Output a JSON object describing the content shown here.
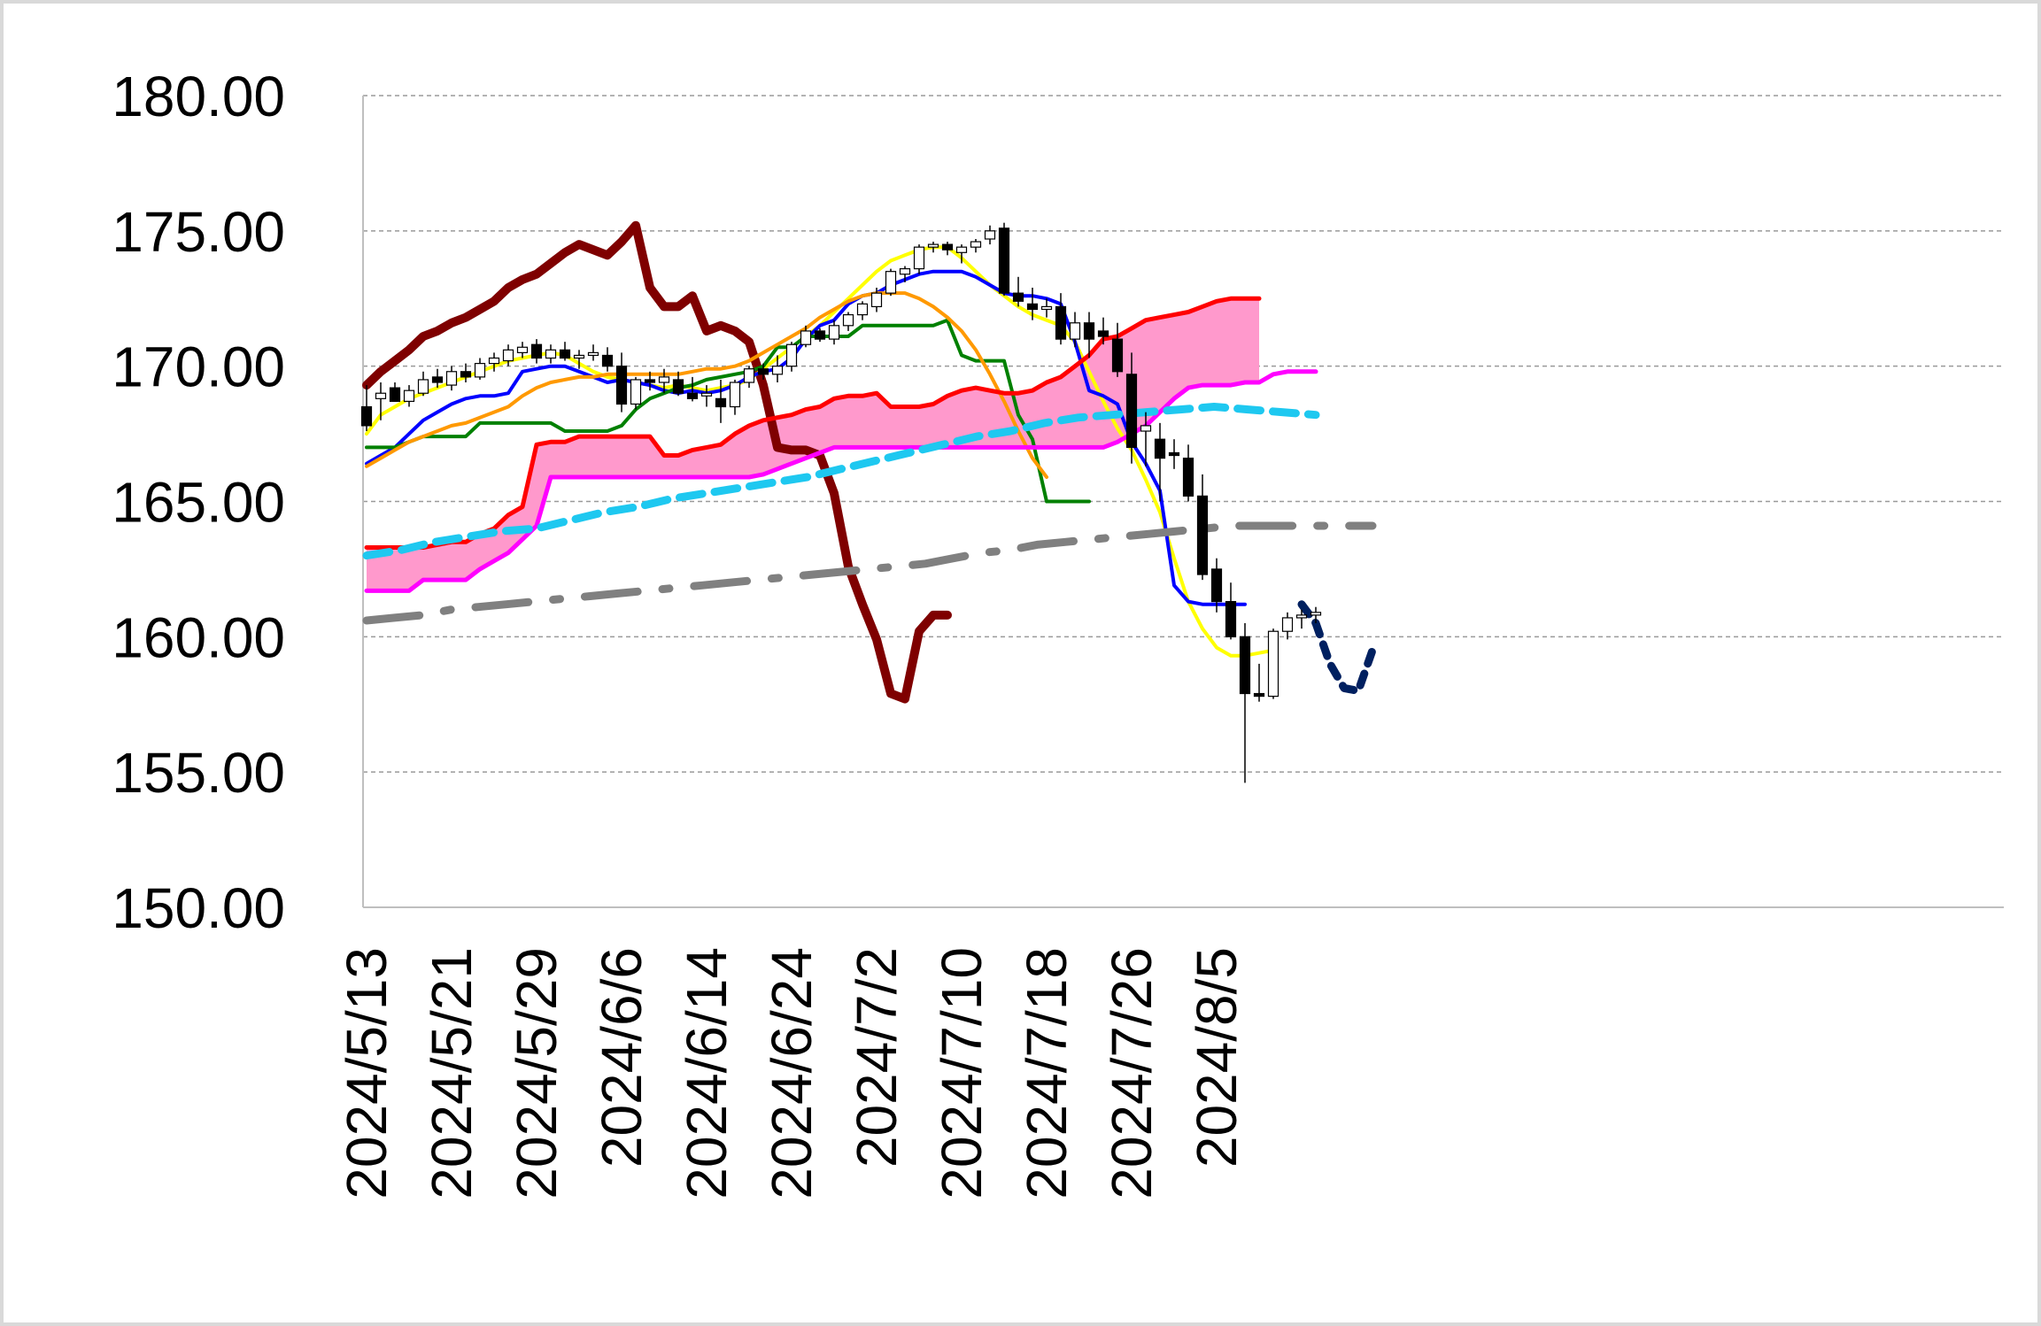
{
  "chart_data": {
    "type": "line",
    "title": "",
    "xlabel": "",
    "ylabel": "",
    "ylim": [
      150,
      180
    ],
    "y_ticks": [
      "150.00",
      "155.00",
      "160.00",
      "165.00",
      "170.00",
      "175.00",
      "180.00"
    ],
    "x_tick_labels": [
      "2024/5/13",
      "2024/5/21",
      "2024/5/29",
      "2024/6/6",
      "2024/6/14",
      "2024/6/24",
      "2024/7/2",
      "2024/7/10",
      "2024/7/18",
      "2024/7/26",
      "2024/8/5"
    ],
    "x_tick_index": [
      0,
      6,
      12,
      18,
      24,
      30,
      36,
      42,
      48,
      54,
      60
    ],
    "grid": "horizontal dashed",
    "legend": "none",
    "candles": [
      [
        168.5,
        169.3,
        167.6,
        167.8
      ],
      [
        168.8,
        169.4,
        168.0,
        169.0
      ],
      [
        169.2,
        169.4,
        168.7,
        168.7
      ],
      [
        168.7,
        169.3,
        168.5,
        169.1
      ],
      [
        169.0,
        169.8,
        168.9,
        169.5
      ],
      [
        169.6,
        169.9,
        169.2,
        169.4
      ],
      [
        169.3,
        170.0,
        169.1,
        169.8
      ],
      [
        169.8,
        170.1,
        169.4,
        169.6
      ],
      [
        169.6,
        170.3,
        169.5,
        170.1
      ],
      [
        170.1,
        170.5,
        169.8,
        170.3
      ],
      [
        170.2,
        170.8,
        170.0,
        170.6
      ],
      [
        170.5,
        170.9,
        170.3,
        170.7
      ],
      [
        170.8,
        171.0,
        170.1,
        170.3
      ],
      [
        170.3,
        170.8,
        170.1,
        170.6
      ],
      [
        170.6,
        170.9,
        170.2,
        170.3
      ],
      [
        170.3,
        170.6,
        169.9,
        170.4
      ],
      [
        170.4,
        170.8,
        170.2,
        170.5
      ],
      [
        170.4,
        170.7,
        169.8,
        170.0
      ],
      [
        170.0,
        170.5,
        168.3,
        168.6
      ],
      [
        168.6,
        169.6,
        168.4,
        169.5
      ],
      [
        169.5,
        169.8,
        169.1,
        169.4
      ],
      [
        169.4,
        169.9,
        169.0,
        169.6
      ],
      [
        169.5,
        169.8,
        168.9,
        169.0
      ],
      [
        169.0,
        169.6,
        168.7,
        168.8
      ],
      [
        168.9,
        169.3,
        168.5,
        169.0
      ],
      [
        168.8,
        169.5,
        167.9,
        168.5
      ],
      [
        168.5,
        169.5,
        168.2,
        169.4
      ],
      [
        169.4,
        170.0,
        169.2,
        169.9
      ],
      [
        169.9,
        170.1,
        169.5,
        169.7
      ],
      [
        169.7,
        170.4,
        169.4,
        170.0
      ],
      [
        170.0,
        170.9,
        169.8,
        170.8
      ],
      [
        170.8,
        171.5,
        170.7,
        171.3
      ],
      [
        171.3,
        171.4,
        170.9,
        171.0
      ],
      [
        171.0,
        171.7,
        170.8,
        171.5
      ],
      [
        171.5,
        172.0,
        171.3,
        171.9
      ],
      [
        171.9,
        172.4,
        171.7,
        172.3
      ],
      [
        172.2,
        172.9,
        172.0,
        172.7
      ],
      [
        172.7,
        173.6,
        172.6,
        173.5
      ],
      [
        173.4,
        173.7,
        173.1,
        173.6
      ],
      [
        173.6,
        174.5,
        173.4,
        174.4
      ],
      [
        174.4,
        174.6,
        174.2,
        174.5
      ],
      [
        174.5,
        174.6,
        174.1,
        174.3
      ],
      [
        174.2,
        174.5,
        173.8,
        174.4
      ],
      [
        174.4,
        174.7,
        174.2,
        174.6
      ],
      [
        174.7,
        175.2,
        174.5,
        175.0
      ],
      [
        175.1,
        175.3,
        172.6,
        172.7
      ],
      [
        172.7,
        173.3,
        172.2,
        172.4
      ],
      [
        172.3,
        172.9,
        171.7,
        172.1
      ],
      [
        172.1,
        172.5,
        171.8,
        172.2
      ],
      [
        172.2,
        172.7,
        170.8,
        171.0
      ],
      [
        171.0,
        172.0,
        170.7,
        171.6
      ],
      [
        171.6,
        172.0,
        170.3,
        171.0
      ],
      [
        171.3,
        171.8,
        170.8,
        171.1
      ],
      [
        171.0,
        171.6,
        169.6,
        169.8
      ],
      [
        169.7,
        170.5,
        166.4,
        167.0
      ],
      [
        167.6,
        168.3,
        166.3,
        167.8
      ],
      [
        167.3,
        167.9,
        165.0,
        166.6
      ],
      [
        166.8,
        167.3,
        166.2,
        166.7
      ],
      [
        166.6,
        167.1,
        165.0,
        165.2
      ],
      [
        165.2,
        166.0,
        162.1,
        162.3
      ],
      [
        162.5,
        162.9,
        160.9,
        161.3
      ],
      [
        161.3,
        162.0,
        159.9,
        160.0
      ],
      [
        160.0,
        160.5,
        154.6,
        157.9
      ],
      [
        157.9,
        159.0,
        157.6,
        157.8
      ],
      [
        157.8,
        160.3,
        157.7,
        160.2
      ],
      [
        160.2,
        160.9,
        159.9,
        160.7
      ],
      [
        160.7,
        161.0,
        160.3,
        160.8
      ],
      [
        160.8,
        161.1,
        160.5,
        160.9
      ]
    ],
    "series": [
      {
        "name": "",
        "color": "#7f0000",
        "start": 0,
        "values": [
          169.3,
          169.8,
          170.2,
          170.6,
          171.1,
          171.3,
          171.6,
          171.8,
          172.1,
          172.4,
          172.9,
          173.2,
          173.4,
          173.8,
          174.2,
          174.5,
          174.3,
          174.1,
          174.6,
          175.2,
          172.9,
          172.2,
          172.2,
          172.6,
          171.3,
          171.5,
          171.3,
          170.9,
          169.3,
          167.0,
          166.9,
          166.9,
          166.7,
          165.3,
          162.6,
          161.2,
          159.9,
          157.9,
          157.7,
          160.2,
          160.8,
          160.8
        ]
      },
      {
        "name": "",
        "color": "#ffff00",
        "start": 0,
        "values": [
          167.5,
          168.2,
          168.5,
          168.8,
          169.0,
          169.2,
          169.4,
          169.6,
          169.8,
          170.0,
          170.2,
          170.3,
          170.4,
          170.5,
          170.4,
          170.1,
          169.8,
          169.6,
          169.5,
          169.4,
          169.3,
          169.2,
          169.3,
          169.2,
          169.1,
          169.2,
          169.3,
          169.5,
          169.9,
          170.3,
          170.7,
          171.1,
          171.5,
          172.0,
          172.5,
          173.0,
          173.5,
          173.9,
          174.1,
          174.3,
          174.4,
          174.4,
          174.0,
          173.5,
          173.0,
          172.6,
          172.2,
          171.9,
          171.7,
          171.5,
          170.9,
          169.8,
          168.7,
          167.7,
          166.9,
          165.8,
          164.6,
          162.9,
          161.3,
          160.3,
          159.6,
          159.3,
          159.3,
          159.4,
          159.5
        ]
      },
      {
        "name": "",
        "color": "#0000ff",
        "start": 0,
        "values": [
          166.4,
          166.7,
          167.0,
          167.5,
          168.0,
          168.3,
          168.6,
          168.8,
          168.9,
          168.9,
          169.0,
          169.8,
          169.9,
          170.0,
          170.0,
          169.8,
          169.6,
          169.4,
          169.5,
          169.4,
          169.3,
          169.1,
          169.0,
          169.1,
          169.0,
          169.1,
          169.3,
          169.6,
          169.8,
          169.9,
          170.3,
          171.0,
          171.5,
          171.7,
          172.3,
          172.6,
          172.7,
          173.0,
          173.2,
          173.4,
          173.5,
          173.5,
          173.5,
          173.3,
          173.0,
          172.7,
          172.6,
          172.6,
          172.5,
          172.3,
          170.9,
          169.1,
          168.9,
          168.6,
          167.2,
          166.4,
          165.4,
          161.9,
          161.3,
          161.2,
          161.2,
          161.2,
          161.2
        ]
      },
      {
        "name": "",
        "color": "#008000",
        "start": 0,
        "values": [
          167.0,
          167.0,
          167.0,
          167.2,
          167.4,
          167.4,
          167.4,
          167.4,
          167.9,
          167.9,
          167.9,
          167.9,
          167.9,
          167.9,
          167.6,
          167.6,
          167.6,
          167.6,
          167.8,
          168.4,
          168.8,
          169.0,
          169.2,
          169.3,
          169.5,
          169.6,
          169.7,
          169.8,
          170.0,
          170.7,
          170.7,
          171.1,
          171.1,
          171.1,
          171.1,
          171.5,
          171.5,
          171.5,
          171.5,
          171.5,
          171.5,
          171.7,
          170.4,
          170.2,
          170.2,
          170.2,
          168.2,
          167.3,
          165.0,
          165.0,
          165.0,
          165.0
        ]
      },
      {
        "name": "",
        "color": "#ff9900",
        "start": 0,
        "values": [
          166.3,
          166.6,
          166.9,
          167.2,
          167.4,
          167.6,
          167.8,
          167.9,
          168.1,
          168.3,
          168.5,
          168.9,
          169.2,
          169.4,
          169.5,
          169.6,
          169.6,
          169.7,
          169.7,
          169.7,
          169.7,
          169.7,
          169.7,
          169.8,
          169.9,
          169.9,
          170.0,
          170.2,
          170.5,
          170.8,
          171.1,
          171.4,
          171.8,
          172.1,
          172.4,
          172.6,
          172.7,
          172.7,
          172.7,
          172.5,
          172.2,
          171.8,
          171.3,
          170.6,
          169.7,
          168.7,
          167.6,
          166.6,
          165.9
        ]
      },
      {
        "name": "",
        "color": "#ff0000",
        "start": 0,
        "values": [
          163.3,
          163.3,
          163.3,
          163.3,
          163.3,
          163.4,
          163.5,
          163.5,
          163.8,
          164.0,
          164.5,
          164.8,
          167.1,
          167.2,
          167.2,
          167.4,
          167.4,
          167.4,
          167.4,
          167.4,
          167.4,
          166.7,
          166.7,
          166.9,
          167.0,
          167.1,
          167.5,
          167.8,
          168.0,
          168.1,
          168.2,
          168.4,
          168.5,
          168.8,
          168.9,
          168.9,
          169.0,
          168.5,
          168.5,
          168.5,
          168.6,
          168.9,
          169.1,
          169.2,
          169.1,
          169.0,
          169.0,
          169.1,
          169.4,
          169.6,
          170.0,
          170.4,
          171.0,
          171.1,
          171.4,
          171.7,
          171.8,
          171.9,
          172.0,
          172.2,
          172.4,
          172.5,
          172.5,
          172.5
        ]
      },
      {
        "name": "",
        "color": "#ff00ff",
        "start": 0,
        "values": [
          161.7,
          161.7,
          161.7,
          161.7,
          162.1,
          162.1,
          162.1,
          162.1,
          162.5,
          162.8,
          163.1,
          163.6,
          164.1,
          165.9,
          165.9,
          165.9,
          165.9,
          165.9,
          165.9,
          165.9,
          165.9,
          165.9,
          165.9,
          165.9,
          165.9,
          165.9,
          165.9,
          165.9,
          166.0,
          166.2,
          166.4,
          166.6,
          166.8,
          167.0,
          167.0,
          167.0,
          167.0,
          167.0,
          167.0,
          167.0,
          167.0,
          167.0,
          167.0,
          167.0,
          167.0,
          167.0,
          167.0,
          167.0,
          167.0,
          167.0,
          167.0,
          167.0,
          167.0,
          167.2,
          167.5,
          167.8,
          168.3,
          168.8,
          169.2,
          169.3,
          169.3,
          169.3,
          169.4,
          169.4,
          169.7,
          169.8,
          169.8,
          169.8
        ]
      },
      {
        "name": "",
        "color": "#1ec8f0",
        "start": 0,
        "values": [
          163.0,
          163.2,
          163.5,
          163.7,
          163.9,
          164.0,
          164.3,
          164.6,
          164.8,
          165.1,
          165.3,
          165.5,
          165.7,
          165.9,
          166.2,
          166.5,
          166.8,
          167.1,
          167.4,
          167.6,
          167.9,
          168.1,
          168.2,
          168.3,
          168.4,
          168.5,
          168.4,
          168.3,
          168.2
        ]
      },
      {
        "name": "",
        "color": "#808080",
        "start": 0,
        "values": [
          160.6,
          160.7,
          160.8,
          161.0,
          161.1,
          161.2,
          161.3,
          161.4,
          161.5,
          161.6,
          161.7,
          161.8,
          161.9,
          162.0,
          162.1,
          162.2,
          162.3,
          162.4,
          162.5,
          162.6,
          162.7,
          162.9,
          163.1,
          163.2,
          163.4,
          163.5,
          163.6,
          163.7,
          163.8,
          163.9,
          164.0,
          164.1,
          164.1,
          164.1,
          164.1,
          164.1,
          164.1
        ]
      },
      {
        "name": "",
        "color": "#002060",
        "start": 0,
        "values": [
          161.2,
          160.5,
          159.0,
          158.1,
          158.0,
          159.5
        ]
      }
    ]
  }
}
